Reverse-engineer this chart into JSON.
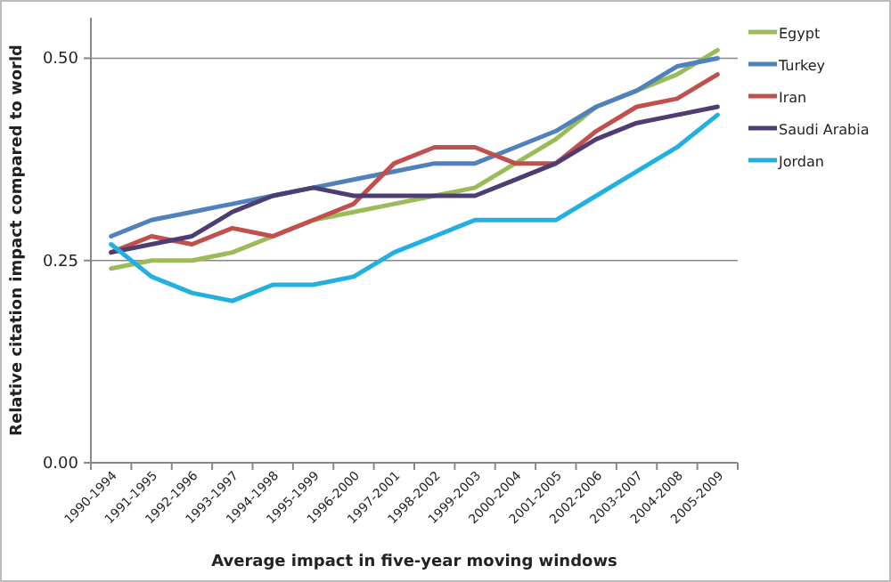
{
  "chart_data": {
    "type": "line",
    "xlabel": "Average impact in five-year moving windows",
    "ylabel": "Relative citation impact compared to world",
    "categories": [
      "1990-1994",
      "1991-1995",
      "1992-1996",
      "1993-1997",
      "1994-1998",
      "1995-1999",
      "1996-2000",
      "1997-2001",
      "1998-2002",
      "1999-2003",
      "2000-2004",
      "2001-2005",
      "2002-2006",
      "2003-2007",
      "2004-2008",
      "2005-2009"
    ],
    "series": [
      {
        "name": "Egypt",
        "color": "#9bbb59",
        "values": [
          0.24,
          0.25,
          0.25,
          0.26,
          0.28,
          0.3,
          0.31,
          0.32,
          0.33,
          0.34,
          0.37,
          0.4,
          0.44,
          0.46,
          0.48,
          0.51
        ]
      },
      {
        "name": "Turkey",
        "color": "#4f81bd",
        "values": [
          0.28,
          0.3,
          0.31,
          0.32,
          0.33,
          0.34,
          0.35,
          0.36,
          0.37,
          0.37,
          0.39,
          0.41,
          0.44,
          0.46,
          0.49,
          0.5
        ]
      },
      {
        "name": "Iran",
        "color": "#c0504d",
        "values": [
          0.26,
          0.28,
          0.27,
          0.29,
          0.28,
          0.3,
          0.32,
          0.37,
          0.39,
          0.39,
          0.37,
          0.37,
          0.41,
          0.44,
          0.45,
          0.48
        ]
      },
      {
        "name": "Saudi Arabia",
        "color": "#4e3d72",
        "values": [
          0.26,
          0.27,
          0.28,
          0.31,
          0.33,
          0.34,
          0.33,
          0.33,
          0.33,
          0.33,
          0.35,
          0.37,
          0.4,
          0.42,
          0.43,
          0.44
        ]
      },
      {
        "name": "Jordan",
        "color": "#22b0e0",
        "values": [
          0.27,
          0.23,
          0.21,
          0.2,
          0.22,
          0.22,
          0.23,
          0.26,
          0.28,
          0.3,
          0.3,
          0.3,
          0.33,
          0.36,
          0.39,
          0.43
        ]
      }
    ],
    "ylim": [
      0,
      0.55
    ],
    "yticks": [
      {
        "value": 0,
        "label": "0.00"
      },
      {
        "value": 0.25,
        "label": "0.25"
      },
      {
        "value": 0.5,
        "label": "0.50"
      }
    ],
    "grid": "y",
    "legend": "right",
    "marker": "none",
    "line_style": "solid"
  }
}
